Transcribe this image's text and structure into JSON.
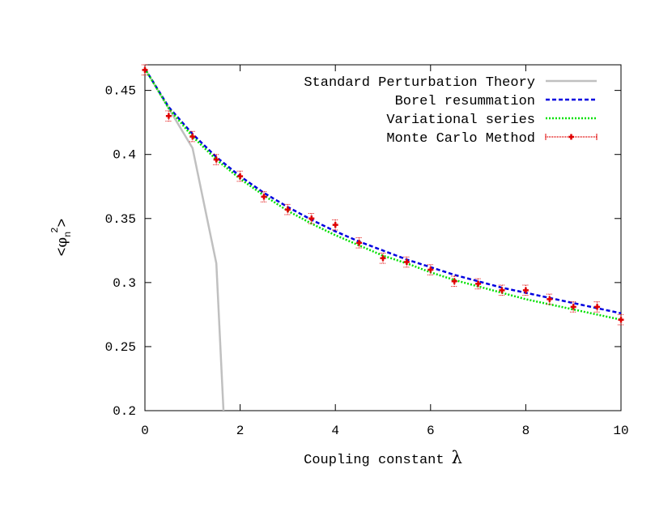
{
  "chart_data": {
    "type": "line",
    "xlabel": "Coupling constant",
    "xlabel_symbol": "λ",
    "ylabel": {
      "open": "<",
      "symbol": "φ",
      "subscript": "n",
      "superscript": "2",
      "close": ">"
    },
    "xlim": [
      0,
      10
    ],
    "ylim": [
      0.2,
      0.47
    ],
    "xticks": [
      0,
      2,
      4,
      6,
      8,
      10
    ],
    "yticks": [
      0.2,
      0.25,
      0.3,
      0.35,
      0.4,
      0.45
    ],
    "xtick_labels": [
      "0",
      "2",
      "4",
      "6",
      "8",
      "10"
    ],
    "ytick_labels": [
      "0.2",
      "0.25",
      "0.3",
      "0.35",
      "0.4",
      "0.45"
    ],
    "grid": false,
    "legend_position": "top-right",
    "series": [
      {
        "name": "Standard Perturbation Theory",
        "color": "#c0c0c0",
        "style": "solid",
        "x": [
          0,
          1,
          1.5,
          1.65
        ],
        "y": [
          0.467,
          0.405,
          0.315,
          0.2
        ]
      },
      {
        "name": "Borel resummation",
        "color": "#0000e0",
        "style": "dashed",
        "x": [
          0,
          0.5,
          1,
          1.5,
          2,
          2.5,
          3,
          3.5,
          4,
          4.5,
          5,
          5.5,
          6,
          6.5,
          7,
          7.5,
          8,
          8.5,
          9,
          9.5,
          10
        ],
        "y": [
          0.467,
          0.437,
          0.416,
          0.398,
          0.383,
          0.37,
          0.359,
          0.349,
          0.34,
          0.332,
          0.325,
          0.318,
          0.312,
          0.306,
          0.301,
          0.296,
          0.292,
          0.288,
          0.284,
          0.28,
          0.276
        ]
      },
      {
        "name": "Variational series",
        "color": "#00e000",
        "style": "dotted",
        "x": [
          0,
          0.5,
          1,
          1.5,
          2,
          2.5,
          3,
          3.5,
          4,
          4.5,
          5,
          5.5,
          6,
          6.5,
          7,
          7.5,
          8,
          8.5,
          9,
          9.5,
          10
        ],
        "y": [
          0.467,
          0.436,
          0.414,
          0.396,
          0.381,
          0.368,
          0.356,
          0.346,
          0.337,
          0.329,
          0.321,
          0.315,
          0.308,
          0.302,
          0.297,
          0.292,
          0.287,
          0.283,
          0.279,
          0.275,
          0.271
        ]
      },
      {
        "name": "Monte Carlo Method",
        "color": "#e00000",
        "style": "points-errorbars",
        "x": [
          0,
          0.5,
          1,
          1.5,
          2,
          2.5,
          3,
          3.5,
          4,
          4.5,
          5,
          5.5,
          6,
          6.5,
          7,
          7.5,
          8,
          8.5,
          9,
          9.5,
          10
        ],
        "y": [
          0.466,
          0.43,
          0.414,
          0.396,
          0.383,
          0.367,
          0.357,
          0.35,
          0.345,
          0.331,
          0.319,
          0.316,
          0.31,
          0.301,
          0.299,
          0.294,
          0.294,
          0.287,
          0.281,
          0.281,
          0.271
        ],
        "err": [
          0.004,
          0.004,
          0.004,
          0.004,
          0.004,
          0.004,
          0.004,
          0.004,
          0.004,
          0.004,
          0.004,
          0.004,
          0.004,
          0.004,
          0.004,
          0.004,
          0.004,
          0.004,
          0.004,
          0.004,
          0.004
        ]
      }
    ]
  }
}
